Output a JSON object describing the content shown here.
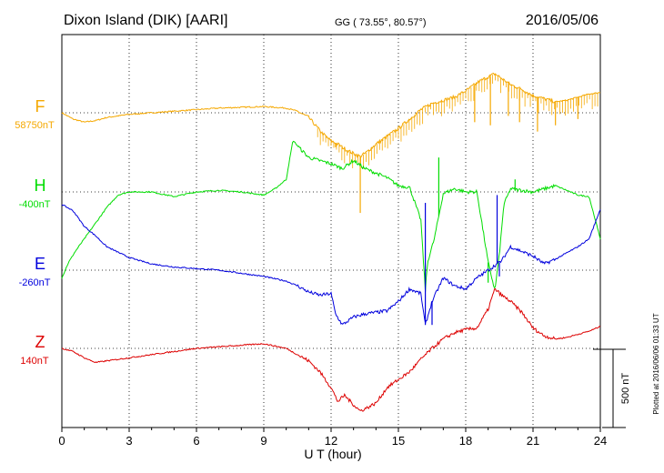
{
  "header": {
    "station": "Dixon Island (DIK)  [AARI]",
    "coords": "GG ( 73.55°,  80.57°)",
    "date": "2016/05/06"
  },
  "plotted_note": "Plotted at 2016/06/06 01:33 UT",
  "chart_data": {
    "type": "line",
    "title": "Dixon Island (DIK)  [AARI]",
    "xlabel": "U T (hour)",
    "ylabel": "",
    "xlim": [
      0,
      24
    ],
    "x_ticks": [
      0,
      3,
      6,
      9,
      12,
      15,
      18,
      21,
      24
    ],
    "x_tick_labels": [
      "0",
      "3",
      "6",
      "9",
      "12",
      "15",
      "18",
      "21",
      "24"
    ],
    "grid": true,
    "units": "nT",
    "scale_bar": {
      "value": 500,
      "label": "500 nT"
    },
    "series": [
      {
        "name": "F",
        "baseline": "58750nT",
        "color": "#F5A800",
        "offset_nT": 0,
        "x": [
          0,
          0.5,
          1,
          1.5,
          2,
          3,
          4,
          5,
          6,
          7,
          8,
          9,
          10,
          10.5,
          11,
          11.3,
          11.6,
          12,
          12.3,
          12.6,
          13,
          13.3,
          13.6,
          14,
          14.5,
          15,
          15.5,
          16,
          16.5,
          17,
          17.5,
          18,
          18.3,
          18.6,
          19,
          19.3,
          19.6,
          20,
          20.5,
          21,
          21.5,
          22,
          22.5,
          23,
          23.5,
          24
        ],
        "values": [
          0,
          -40,
          -60,
          -50,
          -30,
          -10,
          0,
          10,
          20,
          30,
          35,
          40,
          30,
          10,
          -30,
          -80,
          -130,
          -180,
          -200,
          -230,
          -260,
          -280,
          -250,
          -200,
          -150,
          -100,
          -40,
          20,
          60,
          80,
          100,
          140,
          170,
          200,
          230,
          250,
          220,
          180,
          150,
          110,
          90,
          70,
          80,
          100,
          120,
          130
        ],
        "spikes": [
          [
            11.8,
            -160
          ],
          [
            12.2,
            -220
          ],
          [
            12.6,
            -220
          ],
          [
            13.3,
            -640
          ],
          [
            13.8,
            -220
          ],
          [
            14.3,
            -180
          ],
          [
            18.4,
            -60
          ],
          [
            19.1,
            -80
          ],
          [
            19.9,
            -20
          ],
          [
            20.4,
            -60
          ],
          [
            21.2,
            -120
          ],
          [
            22.0,
            -80
          ],
          [
            23.0,
            -40
          ]
        ]
      },
      {
        "name": "H",
        "baseline": "-400nT",
        "color": "#00DD00",
        "offset_nT": 0,
        "x": [
          0,
          0.3,
          0.6,
          1,
          1.5,
          2,
          2.5,
          3,
          4,
          5,
          6,
          7,
          8,
          9,
          9.5,
          10,
          10.3,
          10.6,
          11,
          11.5,
          12,
          12.5,
          13,
          13.5,
          14,
          14.5,
          15,
          15.5,
          16,
          16.2,
          16.3,
          16.6,
          17,
          17.5,
          18,
          18.5,
          19,
          19.3,
          19.5,
          19.7,
          20,
          21,
          22,
          23,
          23.5,
          24
        ],
        "values": [
          -550,
          -450,
          -380,
          -300,
          -200,
          -100,
          -20,
          0,
          0,
          -30,
          0,
          10,
          0,
          -20,
          20,
          80,
          330,
          280,
          220,
          200,
          180,
          150,
          200,
          150,
          120,
          90,
          40,
          30,
          -180,
          -630,
          -450,
          -300,
          -10,
          20,
          0,
          0,
          -450,
          -630,
          -400,
          -80,
          20,
          0,
          40,
          -20,
          -30,
          -300
        ],
        "spikes": [
          [
            16.8,
            220
          ],
          [
            19.0,
            -580
          ],
          [
            20.2,
            80
          ]
        ]
      },
      {
        "name": "E",
        "baseline": "-260nT",
        "color": "#0000DD",
        "offset_nT": 0,
        "x": [
          0,
          0.5,
          1,
          1.5,
          2,
          3,
          4,
          5,
          6,
          7,
          8,
          9,
          10,
          10.5,
          11,
          11.5,
          12,
          12.2,
          12.5,
          13,
          13.5,
          14,
          14.5,
          15,
          15.5,
          16,
          16.2,
          16.5,
          17,
          17.5,
          18,
          18.5,
          19,
          19.3,
          19.6,
          20,
          20.5,
          21,
          21.5,
          22,
          22.5,
          23,
          23.5,
          24
        ],
        "values": [
          420,
          380,
          280,
          220,
          150,
          80,
          40,
          20,
          10,
          0,
          -20,
          -40,
          -70,
          -100,
          -140,
          -160,
          -150,
          -280,
          -350,
          -300,
          -280,
          -270,
          -260,
          -200,
          -120,
          -150,
          -350,
          -200,
          -50,
          -100,
          -120,
          -50,
          0,
          30,
          60,
          150,
          120,
          90,
          40,
          70,
          110,
          150,
          200,
          390
        ],
        "spikes": [
          [
            16.2,
            430
          ],
          [
            16.5,
            -350
          ],
          [
            19.4,
            480
          ],
          [
            19.5,
            -40
          ]
        ]
      },
      {
        "name": "Z",
        "baseline": "140nT",
        "color": "#DD0000",
        "offset_nT": 0,
        "x": [
          0,
          0.5,
          1,
          1.5,
          2,
          3,
          4,
          5,
          6,
          7,
          8,
          9,
          10,
          10.5,
          11,
          11.5,
          12,
          12.3,
          12.6,
          13,
          13.3,
          13.6,
          14,
          14.5,
          15,
          15.5,
          16,
          16.5,
          17,
          17.5,
          18,
          18.5,
          19,
          19.3,
          19.6,
          20,
          20.5,
          21,
          21.5,
          22,
          22.5,
          23,
          23.5,
          24
        ],
        "values": [
          0,
          -20,
          -60,
          -90,
          -80,
          -60,
          -40,
          -20,
          0,
          10,
          20,
          30,
          0,
          -40,
          -80,
          -150,
          -250,
          -340,
          -300,
          -360,
          -400,
          -380,
          -350,
          -250,
          -200,
          -150,
          -70,
          0,
          60,
          100,
          120,
          130,
          250,
          380,
          340,
          300,
          230,
          130,
          80,
          60,
          70,
          90,
          110,
          140
        ],
        "spikes": []
      }
    ]
  }
}
